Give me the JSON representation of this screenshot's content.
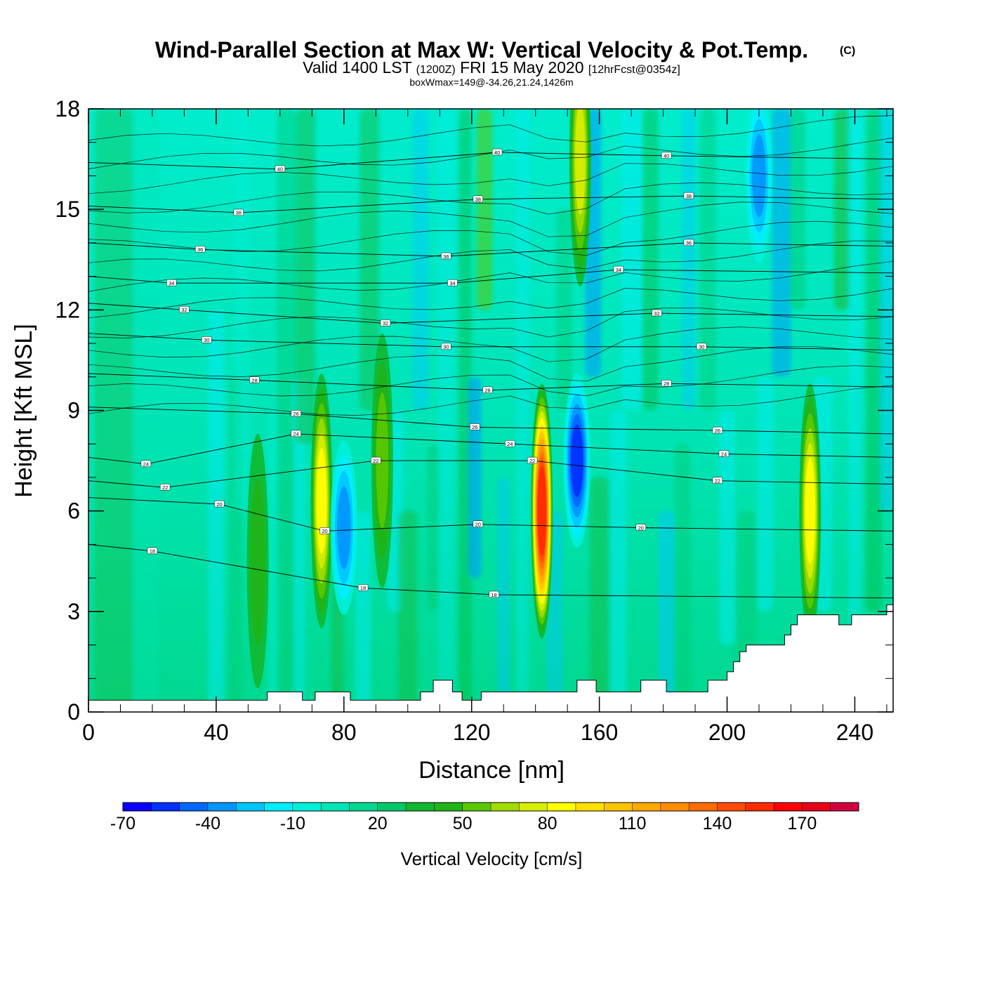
{
  "chart_data": {
    "type": "heatmap",
    "title": "Wind-Parallel Section at Max W: Vertical Velocity & Pot.Temp.",
    "title_mark": "(C)",
    "subtitle_main": "Valid 1400 LST",
    "subtitle_utc": "(1200Z)",
    "subtitle_date": "FRI 15 May 2020",
    "subtitle_fcst": "[12hrFcst@0354z]",
    "subtitle2": "boxWmax=149@-34.26,21.24,1426m",
    "xlabel": "Distance [nm]",
    "ylabel": "Height [Kft MSL]",
    "xlim": [
      0,
      252
    ],
    "ylim": [
      0,
      18
    ],
    "xticks": [
      "0",
      "40",
      "80",
      "120",
      "160",
      "200",
      "240"
    ],
    "yticks": [
      "0",
      "3",
      "6",
      "9",
      "12",
      "15",
      "18"
    ],
    "colorbar": {
      "label": "Vertical Velocity [cm/s]",
      "ticks": [
        "-70",
        "-40",
        "-10",
        "20",
        "50",
        "80",
        "110",
        "140",
        "170"
      ],
      "levels": [
        -70,
        -60,
        -50,
        -40,
        -30,
        -20,
        -10,
        0,
        10,
        20,
        30,
        40,
        50,
        60,
        70,
        80,
        90,
        100,
        110,
        120,
        130,
        140,
        150,
        160,
        170,
        180,
        190
      ],
      "colors": [
        "#0b00ff",
        "#0030ff",
        "#0068ff",
        "#0096ff",
        "#00c6ff",
        "#00eeff",
        "#00f0dc",
        "#00e6b4",
        "#00d890",
        "#00c868",
        "#10b830",
        "#20b418",
        "#5ac800",
        "#a0dc00",
        "#d8ee00",
        "#ffff00",
        "#ffe000",
        "#ffc400",
        "#ffa800",
        "#ff8c00",
        "#ff6c00",
        "#ff4c00",
        "#ff2a00",
        "#ff0000",
        "#e8001a",
        "#d00040"
      ]
    },
    "updraft_cores": [
      {
        "x": 53,
        "y": 4.5,
        "w_max": 40
      },
      {
        "x": 73,
        "y": 6.3,
        "w_max": 80
      },
      {
        "x": 92,
        "y": 7.5,
        "w_max": 50
      },
      {
        "x": 142,
        "y": 6.0,
        "w_max": 149
      },
      {
        "x": 154,
        "y": 16.5,
        "w_max": 70
      },
      {
        "x": 226,
        "y": 6.0,
        "w_max": 80
      }
    ],
    "downdraft_cores": [
      {
        "x": 80,
        "y": 5.5,
        "w_min": -40
      },
      {
        "x": 153,
        "y": 7.5,
        "w_min": -60
      },
      {
        "x": 210,
        "y": 16.0,
        "w_min": -40
      }
    ],
    "isentropes": {
      "units": "C",
      "labels": [
        {
          "x": 60,
          "y": 16.2,
          "text": "40"
        },
        {
          "x": 128,
          "y": 16.7,
          "text": "40"
        },
        {
          "x": 181,
          "y": 16.6,
          "text": "40"
        },
        {
          "x": 47,
          "y": 14.9,
          "text": "38"
        },
        {
          "x": 122,
          "y": 15.3,
          "text": "38"
        },
        {
          "x": 188,
          "y": 15.4,
          "text": "38"
        },
        {
          "x": 35,
          "y": 13.8,
          "text": "36"
        },
        {
          "x": 112,
          "y": 13.6,
          "text": "36"
        },
        {
          "x": 188,
          "y": 14.0,
          "text": "36"
        },
        {
          "x": 26,
          "y": 12.8,
          "text": "34"
        },
        {
          "x": 114,
          "y": 12.8,
          "text": "34"
        },
        {
          "x": 166,
          "y": 13.2,
          "text": "34"
        },
        {
          "x": 30,
          "y": 12.0,
          "text": "32"
        },
        {
          "x": 93,
          "y": 11.6,
          "text": "32"
        },
        {
          "x": 178,
          "y": 11.9,
          "text": "32"
        },
        {
          "x": 37,
          "y": 11.1,
          "text": "30"
        },
        {
          "x": 112,
          "y": 10.9,
          "text": "30"
        },
        {
          "x": 192,
          "y": 10.9,
          "text": "30"
        },
        {
          "x": 52,
          "y": 9.9,
          "text": "28"
        },
        {
          "x": 125,
          "y": 9.6,
          "text": "28"
        },
        {
          "x": 181,
          "y": 9.8,
          "text": "28"
        },
        {
          "x": 65,
          "y": 8.9,
          "text": "26"
        },
        {
          "x": 121,
          "y": 8.5,
          "text": "26"
        },
        {
          "x": 197,
          "y": 8.4,
          "text": "26"
        },
        {
          "x": 65,
          "y": 8.3,
          "text": "24"
        },
        {
          "x": 132,
          "y": 8.0,
          "text": "24"
        },
        {
          "x": 199,
          "y": 7.7,
          "text": "24"
        },
        {
          "x": 18,
          "y": 7.4,
          "text": "24"
        },
        {
          "x": 90,
          "y": 7.5,
          "text": "22"
        },
        {
          "x": 139,
          "y": 7.5,
          "text": "22"
        },
        {
          "x": 24,
          "y": 6.7,
          "text": "22"
        },
        {
          "x": 197,
          "y": 6.9,
          "text": "22"
        },
        {
          "x": 41,
          "y": 6.2,
          "text": "20"
        },
        {
          "x": 74,
          "y": 5.4,
          "text": "20"
        },
        {
          "x": 122,
          "y": 5.6,
          "text": "20"
        },
        {
          "x": 173,
          "y": 5.5,
          "text": "20"
        },
        {
          "x": 20,
          "y": 4.8,
          "text": "18"
        },
        {
          "x": 86,
          "y": 3.7,
          "text": "18"
        },
        {
          "x": 127,
          "y": 3.5,
          "text": "18"
        }
      ]
    },
    "terrain_kft": [
      {
        "x": 0,
        "y": 0.35
      },
      {
        "x": 56,
        "y": 0.35
      },
      {
        "x": 56,
        "y": 0.6
      },
      {
        "x": 67,
        "y": 0.6
      },
      {
        "x": 67,
        "y": 0.35
      },
      {
        "x": 71,
        "y": 0.35
      },
      {
        "x": 71,
        "y": 0.6
      },
      {
        "x": 82,
        "y": 0.6
      },
      {
        "x": 82,
        "y": 0.35
      },
      {
        "x": 104,
        "y": 0.35
      },
      {
        "x": 104,
        "y": 0.6
      },
      {
        "x": 108,
        "y": 0.6
      },
      {
        "x": 108,
        "y": 0.95
      },
      {
        "x": 114,
        "y": 0.95
      },
      {
        "x": 114,
        "y": 0.6
      },
      {
        "x": 117,
        "y": 0.6
      },
      {
        "x": 117,
        "y": 0.35
      },
      {
        "x": 123,
        "y": 0.35
      },
      {
        "x": 123,
        "y": 0.6
      },
      {
        "x": 153,
        "y": 0.6
      },
      {
        "x": 153,
        "y": 0.95
      },
      {
        "x": 159,
        "y": 0.95
      },
      {
        "x": 159,
        "y": 0.6
      },
      {
        "x": 173,
        "y": 0.6
      },
      {
        "x": 173,
        "y": 0.95
      },
      {
        "x": 181,
        "y": 0.95
      },
      {
        "x": 181,
        "y": 0.6
      },
      {
        "x": 194,
        "y": 0.6
      },
      {
        "x": 194,
        "y": 0.95
      },
      {
        "x": 200,
        "y": 0.95
      },
      {
        "x": 200,
        "y": 1.2
      },
      {
        "x": 202,
        "y": 1.2
      },
      {
        "x": 202,
        "y": 1.5
      },
      {
        "x": 204,
        "y": 1.5
      },
      {
        "x": 204,
        "y": 1.8
      },
      {
        "x": 206,
        "y": 1.8
      },
      {
        "x": 206,
        "y": 2.0
      },
      {
        "x": 218,
        "y": 2.0
      },
      {
        "x": 218,
        "y": 2.3
      },
      {
        "x": 220,
        "y": 2.3
      },
      {
        "x": 220,
        "y": 2.6
      },
      {
        "x": 222,
        "y": 2.6
      },
      {
        "x": 222,
        "y": 2.9
      },
      {
        "x": 235,
        "y": 2.9
      },
      {
        "x": 235,
        "y": 2.6
      },
      {
        "x": 239,
        "y": 2.6
      },
      {
        "x": 239,
        "y": 2.9
      },
      {
        "x": 250,
        "y": 2.9
      },
      {
        "x": 250,
        "y": 3.2
      },
      {
        "x": 252,
        "y": 3.2
      }
    ]
  }
}
